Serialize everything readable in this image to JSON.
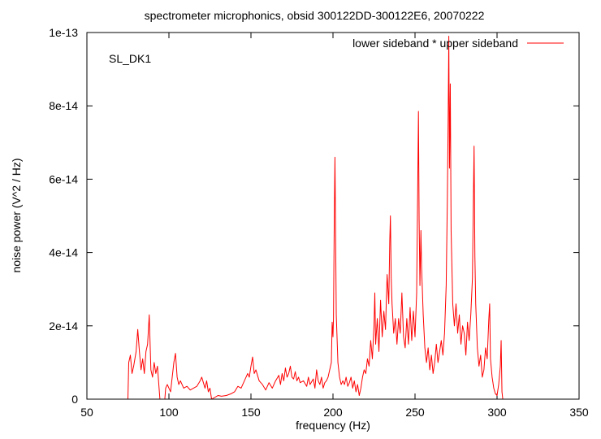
{
  "chart_data": {
    "type": "line",
    "title": "spectrometer microphonics, obsid 300122DD-300122E6, 20070222",
    "xlabel": "frequency (Hz)",
    "ylabel": "noise power (V^2 / Hz)",
    "annotation": "SL_DK1",
    "xlim": [
      50,
      350
    ],
    "ylim": [
      0,
      1e-13
    ],
    "xticks": [
      50,
      100,
      150,
      200,
      250,
      300,
      350
    ],
    "xtick_labels": [
      "50",
      "100",
      "150",
      "200",
      "250",
      "300",
      "350"
    ],
    "yticks": [
      0,
      2e-14,
      4e-14,
      6e-14,
      8e-14,
      1e-13
    ],
    "ytick_labels": [
      "0",
      "2e-14",
      "4e-14",
      "6e-14",
      "8e-14",
      "1e-13"
    ],
    "grid": false,
    "legend_position": "top-right",
    "series": [
      {
        "name": "lower sideband * upper sideband",
        "color": "#ff0000",
        "points": [
          [
            50,
            0
          ],
          [
            75,
            0
          ],
          [
            75.5,
            1e-14
          ],
          [
            76.5,
            1.2e-14
          ],
          [
            77.5,
            7e-15
          ],
          [
            78.5,
            9e-15
          ],
          [
            80,
            1.3e-14
          ],
          [
            81,
            1.9e-14
          ],
          [
            82,
            1.3e-14
          ],
          [
            83,
            8e-15
          ],
          [
            84,
            1.1e-14
          ],
          [
            85,
            7e-15
          ],
          [
            86,
            1.3e-14
          ],
          [
            87,
            1.5e-14
          ],
          [
            88,
            2.3e-14
          ],
          [
            89,
            8e-15
          ],
          [
            90,
            6e-15
          ],
          [
            91,
            1e-14
          ],
          [
            92,
            7e-15
          ],
          [
            93,
            9e-15
          ],
          [
            94,
            3e-15
          ],
          [
            94.5,
            0
          ],
          [
            97.5,
            0
          ],
          [
            98,
            3e-15
          ],
          [
            99,
            4e-15
          ],
          [
            100,
            3e-15
          ],
          [
            101,
            2e-15
          ],
          [
            102,
            6e-15
          ],
          [
            103,
            1e-14
          ],
          [
            104,
            1.25e-14
          ],
          [
            105,
            6e-15
          ],
          [
            106,
            4e-15
          ],
          [
            107,
            5e-15
          ],
          [
            109,
            3e-15
          ],
          [
            111,
            3.5e-15
          ],
          [
            113,
            2.5e-15
          ],
          [
            115,
            3e-15
          ],
          [
            117,
            3.5e-15
          ],
          [
            119,
            5e-15
          ],
          [
            120,
            6e-15
          ],
          [
            121,
            4.5e-15
          ],
          [
            122,
            3e-15
          ],
          [
            123,
            5e-15
          ],
          [
            124,
            2e-15
          ],
          [
            125,
            3e-15
          ],
          [
            126,
            0
          ],
          [
            128,
            5e-16
          ],
          [
            130,
            1e-15
          ],
          [
            132,
            8e-16
          ],
          [
            135,
            1e-15
          ],
          [
            138,
            1.5e-15
          ],
          [
            140,
            2e-15
          ],
          [
            142,
            3.5e-15
          ],
          [
            144,
            3e-15
          ],
          [
            146,
            5e-15
          ],
          [
            148,
            7e-15
          ],
          [
            149,
            6e-15
          ],
          [
            150,
            9e-15
          ],
          [
            151,
            1.15e-14
          ],
          [
            152,
            7e-15
          ],
          [
            153,
            8e-15
          ],
          [
            155,
            5e-15
          ],
          [
            157,
            4e-15
          ],
          [
            159,
            2.5e-15
          ],
          [
            161,
            4.5e-15
          ],
          [
            163,
            3e-15
          ],
          [
            165,
            5e-15
          ],
          [
            167,
            6.5e-15
          ],
          [
            168,
            4e-15
          ],
          [
            169,
            7e-15
          ],
          [
            170,
            5e-15
          ],
          [
            171,
            8.5e-15
          ],
          [
            172,
            6e-15
          ],
          [
            173,
            7e-15
          ],
          [
            174,
            9e-15
          ],
          [
            175,
            6e-15
          ],
          [
            176,
            5.5e-15
          ],
          [
            177,
            7.5e-15
          ],
          [
            178,
            5e-15
          ],
          [
            179,
            6e-15
          ],
          [
            180,
            4.5e-15
          ],
          [
            182,
            5e-15
          ],
          [
            184,
            3.5e-15
          ],
          [
            185,
            6e-15
          ],
          [
            186,
            4e-15
          ],
          [
            188,
            5.5e-15
          ],
          [
            189,
            3e-15
          ],
          [
            190,
            8e-15
          ],
          [
            191,
            5e-15
          ],
          [
            192,
            4e-15
          ],
          [
            193,
            6e-15
          ],
          [
            194,
            3e-15
          ],
          [
            195,
            4.5e-15
          ],
          [
            196,
            5e-15
          ],
          [
            197,
            6e-15
          ],
          [
            198,
            8e-15
          ],
          [
            199,
            1e-14
          ],
          [
            199.5,
            2.1e-14
          ],
          [
            200,
            1.7e-14
          ],
          [
            200.3,
            2.2e-14
          ],
          [
            200.8,
            5e-14
          ],
          [
            201.2,
            6.6e-14
          ],
          [
            201.6,
            4.5e-14
          ],
          [
            202,
            2.3e-14
          ],
          [
            203,
            1e-14
          ],
          [
            204,
            6e-15
          ],
          [
            205,
            4e-15
          ],
          [
            206,
            5e-15
          ],
          [
            207,
            4e-15
          ],
          [
            208,
            6e-15
          ],
          [
            209,
            3.5e-15
          ],
          [
            210,
            4.5e-15
          ],
          [
            211,
            6e-15
          ],
          [
            212,
            3e-15
          ],
          [
            213,
            5e-15
          ],
          [
            214,
            2e-15
          ],
          [
            215,
            4e-15
          ],
          [
            216,
            1e-15
          ],
          [
            217,
            3e-15
          ],
          [
            218,
            6e-15
          ],
          [
            219,
            8e-15
          ],
          [
            220,
            7e-15
          ],
          [
            221,
            1.1e-14
          ],
          [
            222,
            9e-15
          ],
          [
            223,
            1.6e-14
          ],
          [
            224,
            1.1e-14
          ],
          [
            225,
            2e-14
          ],
          [
            225.5,
            2.9e-14
          ],
          [
            226,
            1.5e-14
          ],
          [
            227,
            2.2e-14
          ],
          [
            228,
            1.3e-14
          ],
          [
            229,
            2.7e-14
          ],
          [
            230,
            1.7e-14
          ],
          [
            231,
            2.4e-14
          ],
          [
            232,
            1.9e-14
          ],
          [
            233,
            3.4e-14
          ],
          [
            234,
            2.6e-14
          ],
          [
            234.6,
            4.3e-14
          ],
          [
            235,
            5e-14
          ],
          [
            235.5,
            3.3e-14
          ],
          [
            236,
            2.6e-14
          ],
          [
            237,
            1.8e-14
          ],
          [
            238,
            2.2e-14
          ],
          [
            239,
            1.5e-14
          ],
          [
            240,
            2.2e-14
          ],
          [
            241,
            1.8e-14
          ],
          [
            242,
            2.9e-14
          ],
          [
            243,
            1.7e-14
          ],
          [
            244,
            1.4e-14
          ],
          [
            245,
            2.2e-14
          ],
          [
            246,
            1.5e-14
          ],
          [
            247,
            2.5e-14
          ],
          [
            248,
            1.6e-14
          ],
          [
            249,
            2.4e-14
          ],
          [
            250,
            1.7e-14
          ],
          [
            251,
            2.9e-14
          ],
          [
            251.7,
            6e-14
          ],
          [
            252.1,
            7.85e-14
          ],
          [
            252.5,
            4.9e-14
          ],
          [
            253,
            3.1e-14
          ],
          [
            253.6,
            4.6e-14
          ],
          [
            254,
            3.6e-14
          ],
          [
            255,
            2.3e-14
          ],
          [
            256,
            1.4e-14
          ],
          [
            257,
            1e-14
          ],
          [
            258,
            1.4e-14
          ],
          [
            259,
            8e-15
          ],
          [
            260,
            1.2e-14
          ],
          [
            261,
            7e-15
          ],
          [
            262,
            1e-14
          ],
          [
            263,
            1.5e-14
          ],
          [
            264,
            1e-14
          ],
          [
            265,
            1.3e-14
          ],
          [
            266,
            1.6e-14
          ],
          [
            267,
            1.2e-14
          ],
          [
            268,
            1.8e-14
          ],
          [
            269,
            3.1e-14
          ],
          [
            269.7,
            5.4e-14
          ],
          [
            270.2,
            7.6e-14
          ],
          [
            270.6,
            9.9e-14
          ],
          [
            271,
            6.3e-14
          ],
          [
            271.5,
            8.6e-14
          ],
          [
            272,
            4.6e-14
          ],
          [
            272.6,
            3.4e-14
          ],
          [
            273,
            2.6e-14
          ],
          [
            274,
            2e-14
          ],
          [
            275,
            2.6e-14
          ],
          [
            276,
            1.8e-14
          ],
          [
            277,
            2.3e-14
          ],
          [
            278,
            1.5e-14
          ],
          [
            279,
            2e-14
          ],
          [
            280,
            1.8e-14
          ],
          [
            281,
            1.2e-14
          ],
          [
            282,
            2.1e-14
          ],
          [
            283,
            1.6e-14
          ],
          [
            284,
            2.3e-14
          ],
          [
            285,
            3.3e-14
          ],
          [
            285.6,
            5.5e-14
          ],
          [
            286,
            6.9e-14
          ],
          [
            286.5,
            3.9e-14
          ],
          [
            287,
            2.6e-14
          ],
          [
            288,
            1.4e-14
          ],
          [
            289,
            9e-15
          ],
          [
            290,
            1.2e-14
          ],
          [
            291,
            6e-15
          ],
          [
            292,
            8e-15
          ],
          [
            293,
            1.4e-14
          ],
          [
            294,
            1.1e-14
          ],
          [
            295,
            2.2e-14
          ],
          [
            295.5,
            2.6e-14
          ],
          [
            296,
            1.1e-14
          ],
          [
            297,
            6e-15
          ],
          [
            298,
            3e-15
          ],
          [
            299,
            1.5e-15
          ],
          [
            300,
            1e-15
          ],
          [
            301,
            4e-15
          ],
          [
            302,
            9e-15
          ],
          [
            302.5,
            1.6e-14
          ],
          [
            303,
            2e-15
          ],
          [
            303.5,
            0
          ],
          [
            350,
            0
          ]
        ]
      }
    ]
  }
}
